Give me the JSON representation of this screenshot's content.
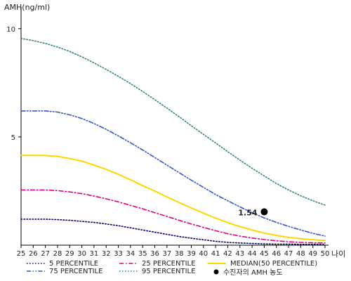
{
  "chart_data": {
    "type": "line",
    "title": "",
    "ylabel": "AMH(ng/ml)",
    "xlabel": "나이",
    "xlim": [
      25,
      50
    ],
    "ylim": [
      0,
      11
    ],
    "x_ticks": [
      "25",
      "26",
      "27",
      "28",
      "29",
      "30",
      "31",
      "32",
      "33",
      "34",
      "35",
      "36",
      "37",
      "38",
      "39",
      "40",
      "41",
      "42",
      "43",
      "44",
      "45",
      "46",
      "47",
      "48",
      "49",
      "50"
    ],
    "y_ticks": [
      "5",
      "10"
    ],
    "legend_position": "bottom",
    "grid": false,
    "series": [
      {
        "name": "5 PERCENTILE",
        "color": "#000080",
        "dash": "dotted",
        "x": [
          25,
          26,
          27,
          28,
          29,
          30,
          31,
          32,
          33,
          34,
          35,
          36,
          37,
          38,
          39,
          40,
          41,
          42,
          43,
          44,
          45,
          46,
          47,
          48,
          49,
          50
        ],
        "y": [
          1.2,
          1.2,
          1.2,
          1.18,
          1.15,
          1.1,
          1.05,
          0.98,
          0.9,
          0.8,
          0.7,
          0.6,
          0.5,
          0.4,
          0.32,
          0.25,
          0.18,
          0.13,
          0.1,
          0.08,
          0.06,
          0.05,
          0.05,
          0.04,
          0.04,
          0.03
        ]
      },
      {
        "name": "25 PERCENTILE",
        "color": "#e0007a",
        "dash": "dashdot",
        "x": [
          25,
          26,
          27,
          28,
          29,
          30,
          31,
          32,
          33,
          34,
          35,
          36,
          37,
          38,
          39,
          40,
          41,
          42,
          43,
          44,
          45,
          46,
          47,
          48,
          49,
          50
        ],
        "y": [
          2.55,
          2.55,
          2.55,
          2.52,
          2.46,
          2.38,
          2.27,
          2.14,
          2.0,
          1.84,
          1.68,
          1.5,
          1.33,
          1.15,
          0.98,
          0.82,
          0.67,
          0.53,
          0.42,
          0.33,
          0.26,
          0.2,
          0.16,
          0.13,
          0.11,
          0.1
        ]
      },
      {
        "name": "MEDIAN(50 PERCENTILE)",
        "color": "#ffd700",
        "dash": "solid",
        "x": [
          25,
          26,
          27,
          28,
          29,
          30,
          31,
          32,
          33,
          34,
          35,
          36,
          37,
          38,
          39,
          40,
          41,
          42,
          43,
          44,
          45,
          46,
          47,
          48,
          49,
          50
        ],
        "y": [
          4.15,
          4.15,
          4.14,
          4.1,
          4.0,
          3.88,
          3.7,
          3.5,
          3.27,
          3.02,
          2.75,
          2.5,
          2.23,
          1.97,
          1.72,
          1.48,
          1.25,
          1.04,
          0.86,
          0.7,
          0.56,
          0.45,
          0.36,
          0.3,
          0.25,
          0.22
        ]
      },
      {
        "name": "75 PERCENTILE",
        "color": "#3355cc",
        "dash": "dashdotdot",
        "x": [
          25,
          26,
          27,
          28,
          29,
          30,
          31,
          32,
          33,
          34,
          35,
          36,
          37,
          38,
          39,
          40,
          41,
          42,
          43,
          44,
          45,
          46,
          47,
          48,
          49,
          50
        ],
        "y": [
          6.2,
          6.2,
          6.2,
          6.15,
          6.02,
          5.85,
          5.62,
          5.35,
          5.05,
          4.73,
          4.4,
          4.05,
          3.7,
          3.35,
          3.0,
          2.67,
          2.34,
          2.05,
          1.77,
          1.5,
          1.26,
          1.05,
          0.87,
          0.7,
          0.55,
          0.42
        ]
      },
      {
        "name": "95 PERCENTILE",
        "color": "#2e8b57",
        "dash": "dotted",
        "x": [
          25,
          26,
          27,
          28,
          29,
          30,
          31,
          32,
          33,
          34,
          35,
          36,
          37,
          38,
          39,
          40,
          41,
          42,
          43,
          44,
          45,
          46,
          47,
          48,
          49,
          50
        ],
        "y": [
          9.55,
          9.45,
          9.32,
          9.15,
          8.95,
          8.7,
          8.42,
          8.12,
          7.8,
          7.46,
          7.1,
          6.72,
          6.33,
          5.93,
          5.52,
          5.12,
          4.72,
          4.32,
          3.93,
          3.55,
          3.2,
          2.85,
          2.55,
          2.28,
          2.05,
          1.85
        ]
      }
    ],
    "marker": {
      "name": "수진자의 AMH 농도",
      "x": 45,
      "y": 1.54,
      "label": "1.54",
      "color": "#000000"
    }
  }
}
